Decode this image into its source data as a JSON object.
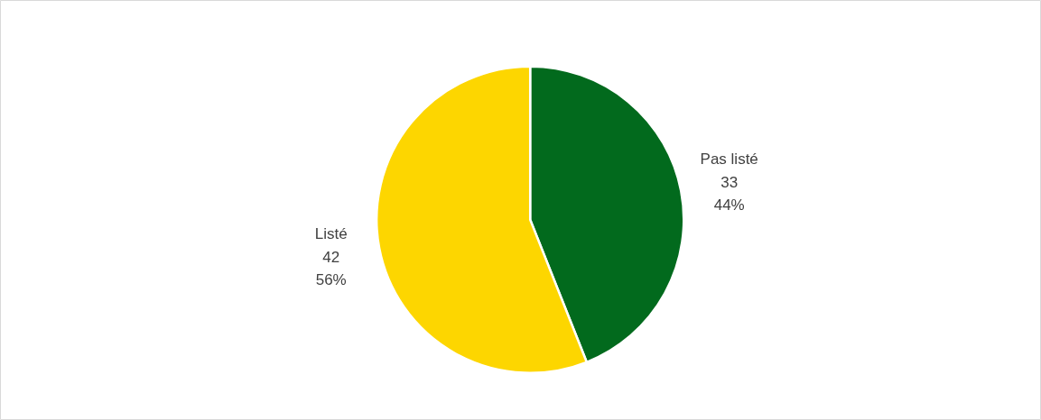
{
  "chart_data": {
    "type": "pie",
    "categories": [
      "Pas listé",
      "Listé"
    ],
    "values": [
      33,
      42
    ],
    "colors": [
      "#026a1d",
      "#fdd600"
    ],
    "data_labels": true,
    "value_labels": [
      "33\n44%",
      "42\n56%"
    ]
  }
}
